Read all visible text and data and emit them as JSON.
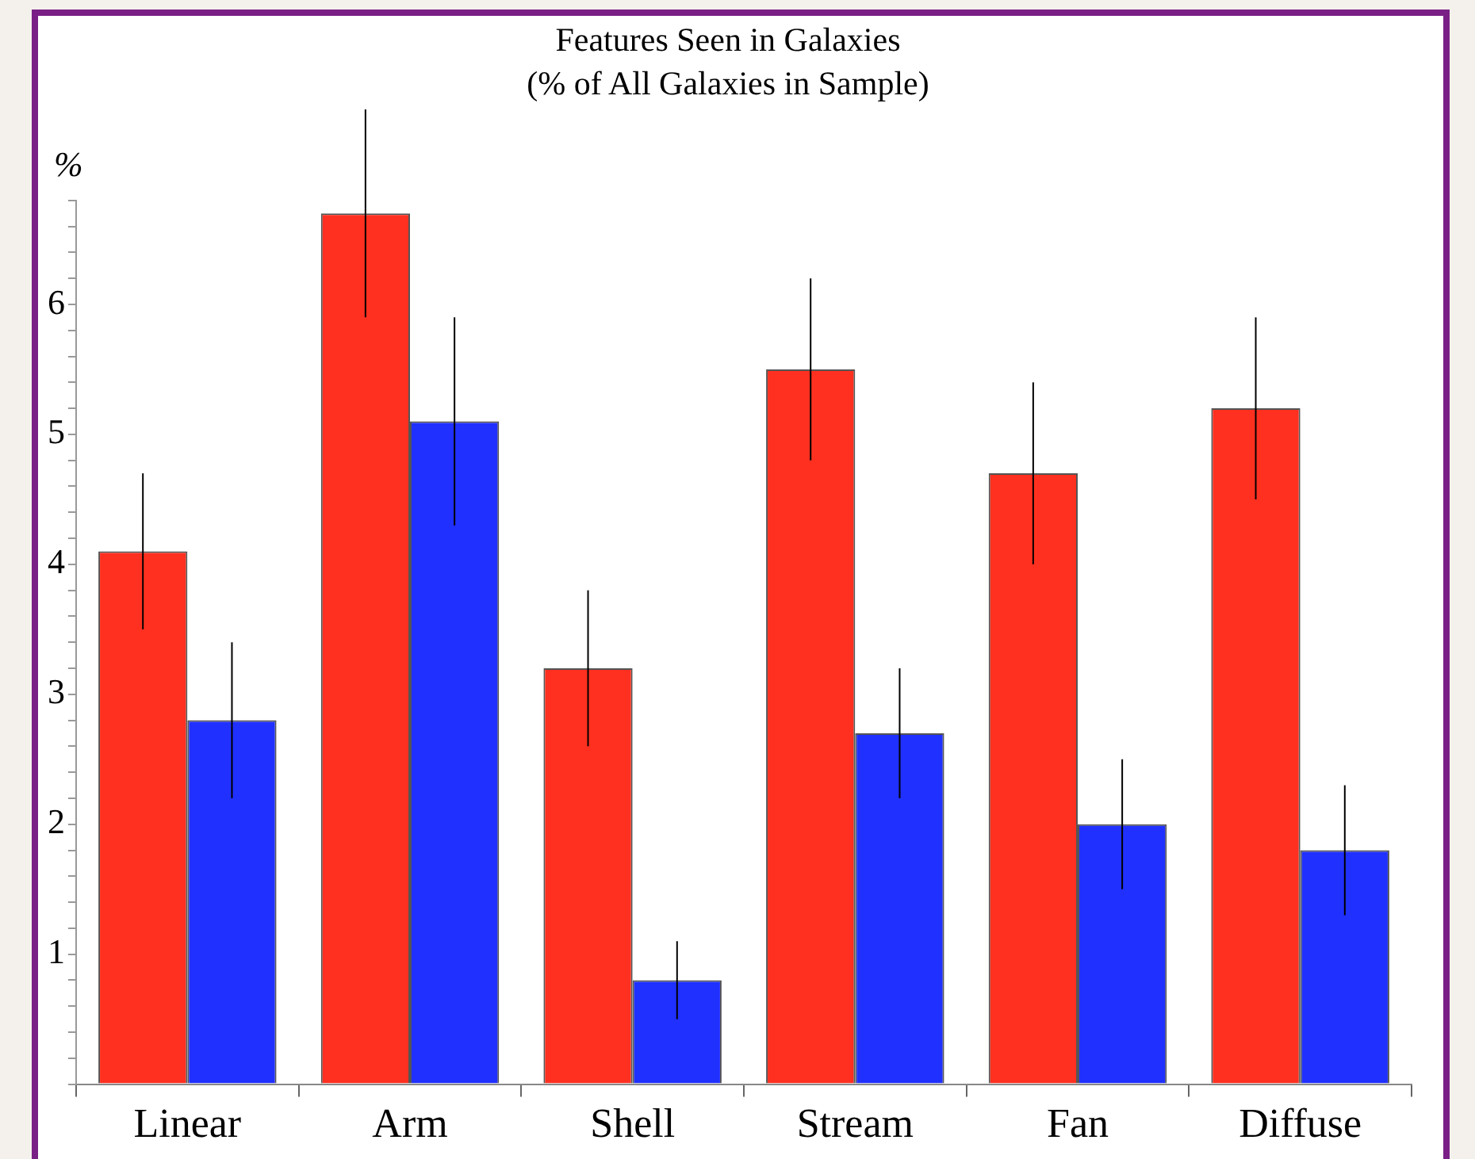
{
  "chart_data": {
    "type": "bar",
    "title": "Features Seen in Galaxies",
    "subtitle": "(% of All Galaxies in Sample)",
    "ylabel": "%",
    "categories": [
      "Linear",
      "Arm",
      "Shell",
      "Stream",
      "Fan",
      "Diffuse"
    ],
    "series": [
      {
        "color": "#ff3020",
        "values": [
          4.1,
          6.7,
          3.2,
          5.5,
          4.7,
          5.2
        ],
        "errors": [
          0.6,
          0.8,
          0.6,
          0.7,
          0.7,
          0.7
        ]
      },
      {
        "color": "#2030ff",
        "values": [
          2.8,
          5.1,
          0.8,
          2.7,
          2.0,
          1.8
        ],
        "errors": [
          0.6,
          0.8,
          0.3,
          0.5,
          0.5,
          0.5
        ]
      }
    ],
    "ylim": [
      0,
      6.8
    ],
    "yticks": [
      {
        "value": 0,
        "label": null
      },
      {
        "value": 0.2,
        "label": null
      },
      {
        "value": 0.4,
        "label": null
      },
      {
        "value": 0.6,
        "label": null
      },
      {
        "value": 0.8,
        "label": null
      },
      1,
      {
        "value": 1.2,
        "label": null
      },
      {
        "value": 1.4,
        "label": null
      },
      {
        "value": 1.6,
        "label": null
      },
      {
        "value": 1.8,
        "label": null
      },
      2,
      {
        "value": 2.2,
        "label": null
      },
      {
        "value": 2.4,
        "label": null
      },
      {
        "value": 2.6,
        "label": null
      },
      {
        "value": 2.8,
        "label": null
      },
      3,
      {
        "value": 3.2,
        "label": null
      },
      {
        "value": 3.4,
        "label": null
      },
      {
        "value": 3.6,
        "label": null
      },
      {
        "value": 3.8,
        "label": null
      },
      4,
      {
        "value": 4.2,
        "label": null
      },
      {
        "value": 4.4,
        "label": null
      },
      {
        "value": 4.6,
        "label": null
      },
      {
        "value": 4.8,
        "label": null
      },
      5,
      {
        "value": 5.2,
        "label": null
      },
      {
        "value": 5.4,
        "label": null
      },
      {
        "value": 5.6,
        "label": null
      },
      {
        "value": 5.8,
        "label": null
      },
      6,
      {
        "value": 6.2,
        "label": null
      },
      {
        "value": 6.4,
        "label": null
      },
      {
        "value": 6.6,
        "label": null
      },
      {
        "value": 6.8,
        "label": null
      }
    ]
  }
}
